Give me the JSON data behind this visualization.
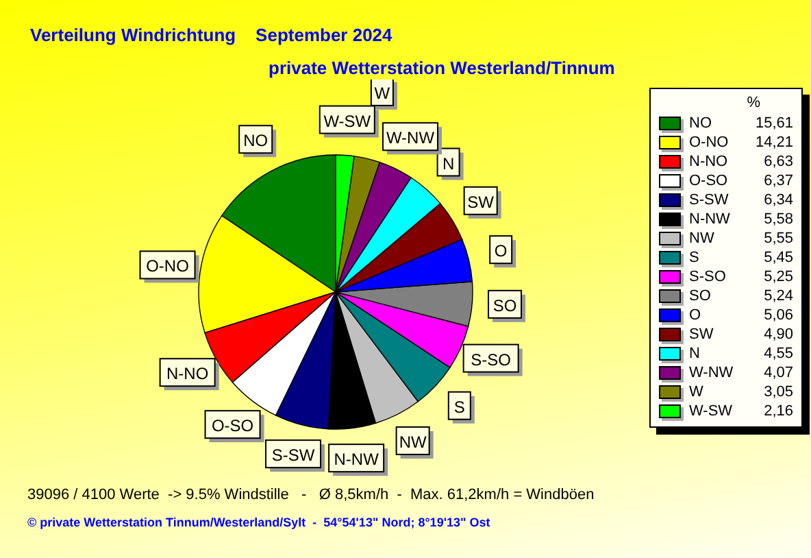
{
  "chart_data": {
    "type": "pie",
    "title": "Verteilung Windrichtung    September 2024",
    "subtitle": "private Wetterstation Westerland/Tinnum",
    "legend_title": "%",
    "legend": "right",
    "categories": [
      "NO",
      "O-NO",
      "N-NO",
      "O-SO",
      "S-SW",
      "N-NW",
      "NW",
      "S",
      "S-SO",
      "SO",
      "O",
      "SW",
      "N",
      "W-NW",
      "W",
      "W-SW"
    ],
    "values": [
      15.61,
      14.21,
      6.63,
      6.37,
      6.34,
      5.58,
      5.55,
      5.45,
      5.25,
      5.24,
      5.06,
      4.9,
      4.55,
      4.07,
      3.05,
      2.16
    ],
    "value_labels": [
      "15,61",
      "14,21",
      "6,63",
      "6,37",
      "6,34",
      "5,58",
      "5,55",
      "5,45",
      "5,25",
      "5,24",
      "5,06",
      "4,90",
      "4,55",
      "4,07",
      "3,05",
      "2,16"
    ],
    "colors": [
      "#008000",
      "#ffff00",
      "#ff0000",
      "#ffffff",
      "#000080",
      "#000000",
      "#c0c0c0",
      "#008080",
      "#ff00ff",
      "#808080",
      "#0000ff",
      "#800000",
      "#00ffff",
      "#800080",
      "#808000",
      "#00ff00"
    ],
    "annotations": [
      "39096 / 4100 Werte  -> 9.5% Windstille   -   Ø 8,5km/h  -  Max. 61,2km/h = Windböen",
      "© private Wetterstation Tinnum/Westerland/Sylt  -  54°54'13\" Nord; 8°19'13\" Ost"
    ]
  }
}
